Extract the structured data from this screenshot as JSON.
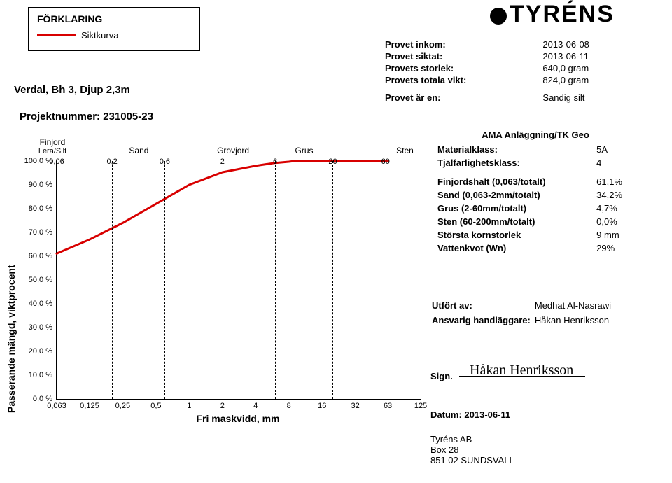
{
  "legend": {
    "title": "FÖRKLARING",
    "curve_label": "Siktkurva",
    "curve_color": "#d80000"
  },
  "header": {
    "sample_title": "Verdal, Bh 3, Djup 2,3m",
    "project_label": "Projektnummer:",
    "project_number": "231005-23"
  },
  "logo": {
    "text": "TYRÉNS"
  },
  "sample": {
    "inkom_label": "Provet inkom:",
    "inkom": "2013-06-08",
    "siktat_label": "Provet siktat:",
    "siktat": "2013-06-11",
    "storlek_label": "Provets storlek:",
    "storlek": "640,0 gram",
    "totalvikt_label": "Provets totala vikt:",
    "totalvikt": "824,0 gram",
    "aren_label": "Provet är en:",
    "aren": "Sandig silt"
  },
  "ama": {
    "title": "AMA Anläggning/TK Geo",
    "materialklass_label": "Materialklass:",
    "materialklass": "5A",
    "tjal_label": "Tjälfarlighetsklass:",
    "tjal": "4",
    "finjord_label": "Finjordshalt (0,063/totalt)",
    "finjord": "61,1%",
    "sand_label": "Sand (0,063-2mm/totalt)",
    "sand": "34,2%",
    "grus_label": "Grus (2-60mm/totalt)",
    "grus": "4,7%",
    "sten_label": "Sten (60-200mm/totalt)",
    "sten": "0,0%",
    "korn_label": "Största kornstorlek",
    "korn": "9 mm",
    "vatten_label": "Vattenkvot (Wn)",
    "vatten": "29%"
  },
  "performed": {
    "utfort_label": "Utfört av:",
    "utfort": "Medhat Al-Nasrawi",
    "ansvarig_label": "Ansvarig handläggare:",
    "ansvarig": "Håkan Henriksson"
  },
  "sign": {
    "label": "Sign.",
    "signature": "Håkan Henriksson"
  },
  "date": {
    "label": "Datum:",
    "value": "2013-06-11"
  },
  "footer": {
    "line1": "Tyréns AB",
    "line2": "Box 28",
    "line3": "851 02  SUNDSVALL"
  },
  "chart": {
    "type": "line",
    "y_label": "Passerande mängd, viktprocent",
    "x_label": "Fri maskvidd, mm",
    "background_color": "#ffffff",
    "curve_color": "#d80000",
    "curve_width": 3,
    "dash_color": "#000000",
    "xscale": "log",
    "xlim": [
      0.063,
      125
    ],
    "ylim": [
      0,
      100
    ],
    "x_ticks": [
      0.063,
      0.125,
      0.25,
      0.5,
      1,
      2,
      4,
      8,
      16,
      32,
      63,
      125
    ],
    "x_tick_labels": [
      "0,063",
      "0,125",
      "0,25",
      "0,5",
      "1",
      "2",
      "4",
      "8",
      "16",
      "32",
      "63",
      "125"
    ],
    "y_ticks": [
      0,
      10,
      20,
      30,
      40,
      50,
      60,
      70,
      80,
      90,
      100
    ],
    "y_tick_labels": [
      "0,0 %",
      "10,0 %",
      "20,0 %",
      "30,0 %",
      "40,0 %",
      "50,0 %",
      "60,0 %",
      "70,0 %",
      "80,0 %",
      "90,0 %",
      "100,0 %"
    ],
    "category_labels": [
      {
        "label": "Finjord",
        "subLabel": "Lera/Silt",
        "x": 0.022
      },
      {
        "label": "Sand",
        "x": 0.35
      },
      {
        "label": "Grovjord",
        "x": 2.5
      },
      {
        "label": "Grus",
        "x": 11
      },
      {
        "label": "Sten",
        "x": 90
      }
    ],
    "division_dashes": [
      {
        "x": 0.2,
        "label": "0,2"
      },
      {
        "x": 0.6,
        "label": "0,6"
      },
      {
        "x": 2,
        "label": "2"
      },
      {
        "x": 6,
        "label": "6"
      },
      {
        "x": 20,
        "label": "20"
      },
      {
        "x": 60,
        "label": "60"
      }
    ],
    "division_top_left": "0,06",
    "series": [
      {
        "x": 0.063,
        "y": 61.1
      },
      {
        "x": 0.125,
        "y": 67
      },
      {
        "x": 0.25,
        "y": 74
      },
      {
        "x": 0.5,
        "y": 82
      },
      {
        "x": 1,
        "y": 90
      },
      {
        "x": 2,
        "y": 95.3
      },
      {
        "x": 4,
        "y": 98
      },
      {
        "x": 6,
        "y": 99.2
      },
      {
        "x": 8,
        "y": 99.7
      },
      {
        "x": 9,
        "y": 100
      },
      {
        "x": 63,
        "y": 100
      }
    ]
  }
}
